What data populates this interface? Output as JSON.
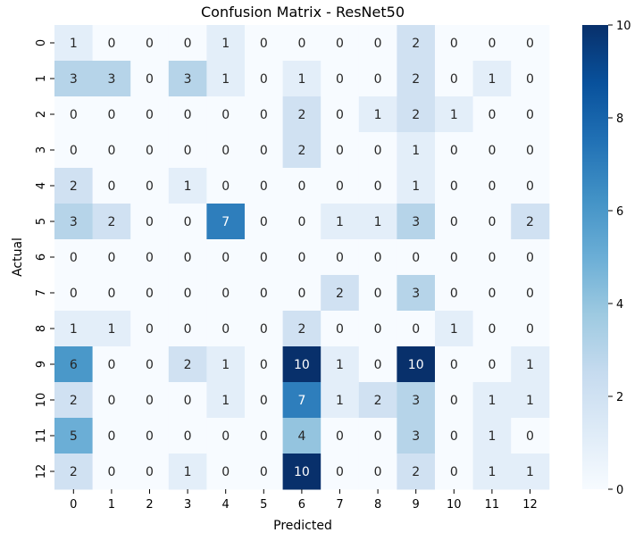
{
  "chart_data": {
    "type": "heatmap",
    "title": "Confusion Matrix - ResNet50",
    "xlabel": "Predicted",
    "ylabel": "Actual",
    "x_tick_labels": [
      "0",
      "1",
      "2",
      "3",
      "4",
      "5",
      "6",
      "7",
      "8",
      "9",
      "10",
      "11",
      "12"
    ],
    "y_tick_labels": [
      "0",
      "1",
      "2",
      "3",
      "4",
      "5",
      "6",
      "7",
      "8",
      "9",
      "10",
      "11",
      "12"
    ],
    "values": [
      [
        1,
        0,
        0,
        0,
        1,
        0,
        0,
        0,
        0,
        2,
        0,
        0,
        0
      ],
      [
        3,
        3,
        0,
        3,
        1,
        0,
        1,
        0,
        0,
        2,
        0,
        1,
        0
      ],
      [
        0,
        0,
        0,
        0,
        0,
        0,
        2,
        0,
        1,
        2,
        1,
        0,
        0
      ],
      [
        0,
        0,
        0,
        0,
        0,
        0,
        2,
        0,
        0,
        1,
        0,
        0,
        0
      ],
      [
        2,
        0,
        0,
        1,
        0,
        0,
        0,
        0,
        0,
        1,
        0,
        0,
        0
      ],
      [
        3,
        2,
        0,
        0,
        7,
        0,
        0,
        1,
        1,
        3,
        0,
        0,
        2
      ],
      [
        0,
        0,
        0,
        0,
        0,
        0,
        0,
        0,
        0,
        0,
        0,
        0,
        0
      ],
      [
        0,
        0,
        0,
        0,
        0,
        0,
        0,
        2,
        0,
        3,
        0,
        0,
        0
      ],
      [
        1,
        1,
        0,
        0,
        0,
        0,
        2,
        0,
        0,
        0,
        1,
        0,
        0
      ],
      [
        6,
        0,
        0,
        2,
        1,
        0,
        10,
        1,
        0,
        10,
        0,
        0,
        1
      ],
      [
        2,
        0,
        0,
        0,
        1,
        0,
        7,
        1,
        2,
        3,
        0,
        1,
        1
      ],
      [
        5,
        0,
        0,
        0,
        0,
        0,
        4,
        0,
        0,
        3,
        0,
        1,
        0
      ],
      [
        2,
        0,
        0,
        1,
        0,
        0,
        10,
        0,
        0,
        2,
        0,
        1,
        1
      ]
    ],
    "colorbar": {
      "range": [
        0,
        10
      ],
      "ticks": [
        "0",
        "2",
        "4",
        "6",
        "8",
        "10"
      ],
      "colormap": "Blues",
      "color_stops": [
        "#f7fbff",
        "#deebf7",
        "#c6dbef",
        "#9ecae1",
        "#6baed6",
        "#4292c6",
        "#2171b5",
        "#08519c",
        "#08306b"
      ]
    },
    "grid": false
  }
}
